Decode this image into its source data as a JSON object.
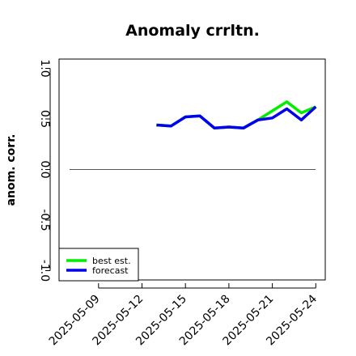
{
  "chart_data": {
    "type": "line",
    "title": "Anomaly crrltn.",
    "ylabel": "anom. corr.",
    "xlabel": "",
    "ylim": [
      -1.0,
      1.0
    ],
    "yticks": [
      "-1.0",
      "-0.5",
      "0.0",
      "0.5",
      "1.0"
    ],
    "ytick_values": [
      -1.0,
      -0.5,
      0.0,
      0.5,
      1.0
    ],
    "x": [
      "2025-05-07",
      "2025-05-08",
      "2025-05-09",
      "2025-05-10",
      "2025-05-11",
      "2025-05-12",
      "2025-05-13",
      "2025-05-14",
      "2025-05-15",
      "2025-05-16",
      "2025-05-17",
      "2025-05-18",
      "2025-05-19",
      "2025-05-20",
      "2025-05-21",
      "2025-05-22",
      "2025-05-23",
      "2025-05-24"
    ],
    "xticks": [
      "2025-05-09",
      "2025-05-12",
      "2025-05-15",
      "2025-05-18",
      "2025-05-21",
      "2025-05-24"
    ],
    "xtick_indices": [
      2,
      5,
      8,
      11,
      14,
      17
    ],
    "highlight_xtick": "2025-05-15",
    "highlight_color": "#228b22",
    "reference_line": 0.0,
    "series": [
      {
        "name": "best est.",
        "color": "#00ee00",
        "values": [
          null,
          null,
          null,
          null,
          null,
          null,
          0.44,
          0.43,
          0.52,
          0.53,
          0.41,
          0.42,
          0.41,
          0.49,
          0.58,
          0.67,
          0.56,
          0.62
        ]
      },
      {
        "name": "forecast",
        "color": "#0000ee",
        "values": [
          null,
          null,
          null,
          null,
          null,
          null,
          0.44,
          0.43,
          0.52,
          0.53,
          0.41,
          0.42,
          0.41,
          0.49,
          0.51,
          0.6,
          0.49,
          0.62
        ]
      }
    ],
    "legend_position": "bottom-left",
    "grid": false
  }
}
